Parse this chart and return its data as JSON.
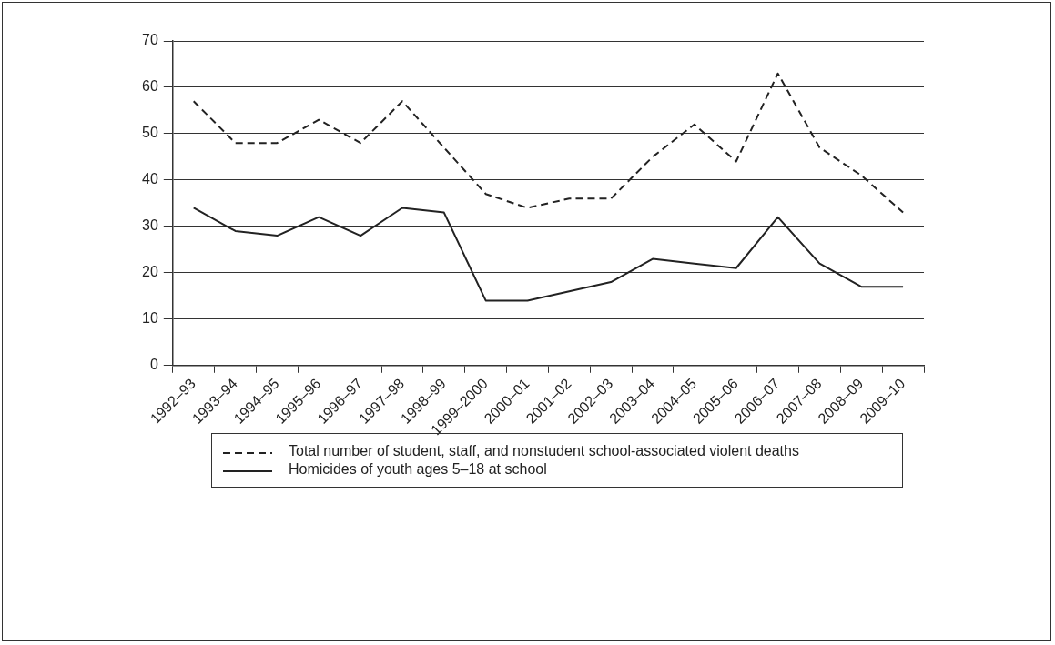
{
  "chart_data": {
    "type": "line",
    "categories": [
      "1992–93",
      "1993–94",
      "1994–95",
      "1995–96",
      "1996–97",
      "1997–98",
      "1998–99",
      "1999–2000",
      "2000–01",
      "2001–02",
      "2002–03",
      "2003–04",
      "2004–05",
      "2005–06",
      "2006–07",
      "2007–08",
      "2008–09",
      "2009–10"
    ],
    "series": [
      {
        "name": "Total number of student, staff, and nonstudent school-associated violent deaths",
        "color": "#222222",
        "line_style": "dashed",
        "values": [
          57,
          48,
          48,
          53,
          48,
          57,
          47,
          37,
          34,
          36,
          36,
          45,
          52,
          44,
          63,
          47,
          41,
          33
        ]
      },
      {
        "name": "Homicides of youth ages 5–18 at school",
        "color": "#222222",
        "line_style": "solid",
        "values": [
          34,
          29,
          28,
          32,
          28,
          34,
          33,
          14,
          14,
          16,
          18,
          23,
          22,
          21,
          32,
          22,
          17,
          17
        ]
      }
    ],
    "ylim": [
      0,
      70
    ],
    "yticks": [
      0,
      10,
      20,
      30,
      40,
      50,
      60,
      70
    ],
    "grid": "y",
    "legend": "bottom",
    "marker": "none"
  }
}
